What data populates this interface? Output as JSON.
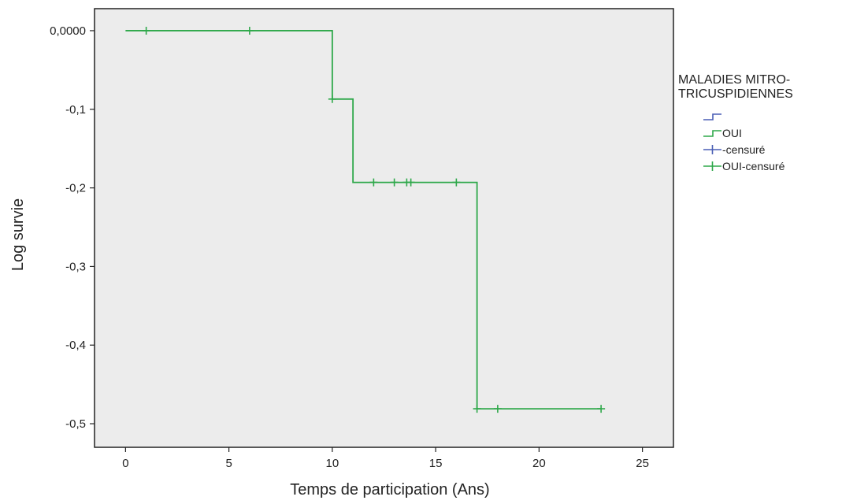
{
  "chart_data": {
    "type": "line",
    "step": true,
    "xlabel": "Temps de participation (Ans)",
    "ylabel": "Log survie",
    "xlim": [
      -1.5,
      26.5
    ],
    "ylim": [
      -0.53,
      0.028
    ],
    "x_ticks": [
      0,
      5,
      10,
      15,
      20,
      25
    ],
    "x_tick_labels": [
      "0",
      "5",
      "10",
      "15",
      "20",
      "25"
    ],
    "y_ticks": [
      0,
      -0.1,
      -0.2,
      -0.3,
      -0.4,
      -0.5
    ],
    "y_tick_labels": [
      "0,0000",
      "-0,1",
      "-0,2",
      "-0,3",
      "-0,4",
      "-0,5"
    ],
    "grid": false,
    "plot_background": "#ececec",
    "legend": {
      "title_lines": [
        "MALADIES MITRO-",
        "TRICUSPIDIENNES"
      ],
      "placement": "right",
      "entries": [
        {
          "label": "",
          "kind": "step",
          "color": "#4a5fb5"
        },
        {
          "label": "OUI",
          "kind": "step",
          "color": "#2ea84a"
        },
        {
          "label": "-censuré",
          "kind": "cross",
          "color": "#4a5fb5"
        },
        {
          "label": "OUI-censuré",
          "kind": "cross",
          "color": "#2ea84a"
        }
      ]
    },
    "series": [
      {
        "name": "OUI",
        "color": "#2ea84a",
        "x": [
          0,
          10,
          11,
          17,
          23
        ],
        "y": [
          0,
          -0.087,
          -0.193,
          -0.481,
          -0.481
        ],
        "censored": [
          {
            "x": 1,
            "y": 0
          },
          {
            "x": 6,
            "y": 0
          },
          {
            "x": 10,
            "y": -0.087
          },
          {
            "x": 12,
            "y": -0.193
          },
          {
            "x": 13,
            "y": -0.193
          },
          {
            "x": 13.6,
            "y": -0.193
          },
          {
            "x": 13.8,
            "y": -0.193
          },
          {
            "x": 16,
            "y": -0.193
          },
          {
            "x": 17,
            "y": -0.481
          },
          {
            "x": 18,
            "y": -0.481
          },
          {
            "x": 23,
            "y": -0.481
          }
        ]
      }
    ]
  }
}
